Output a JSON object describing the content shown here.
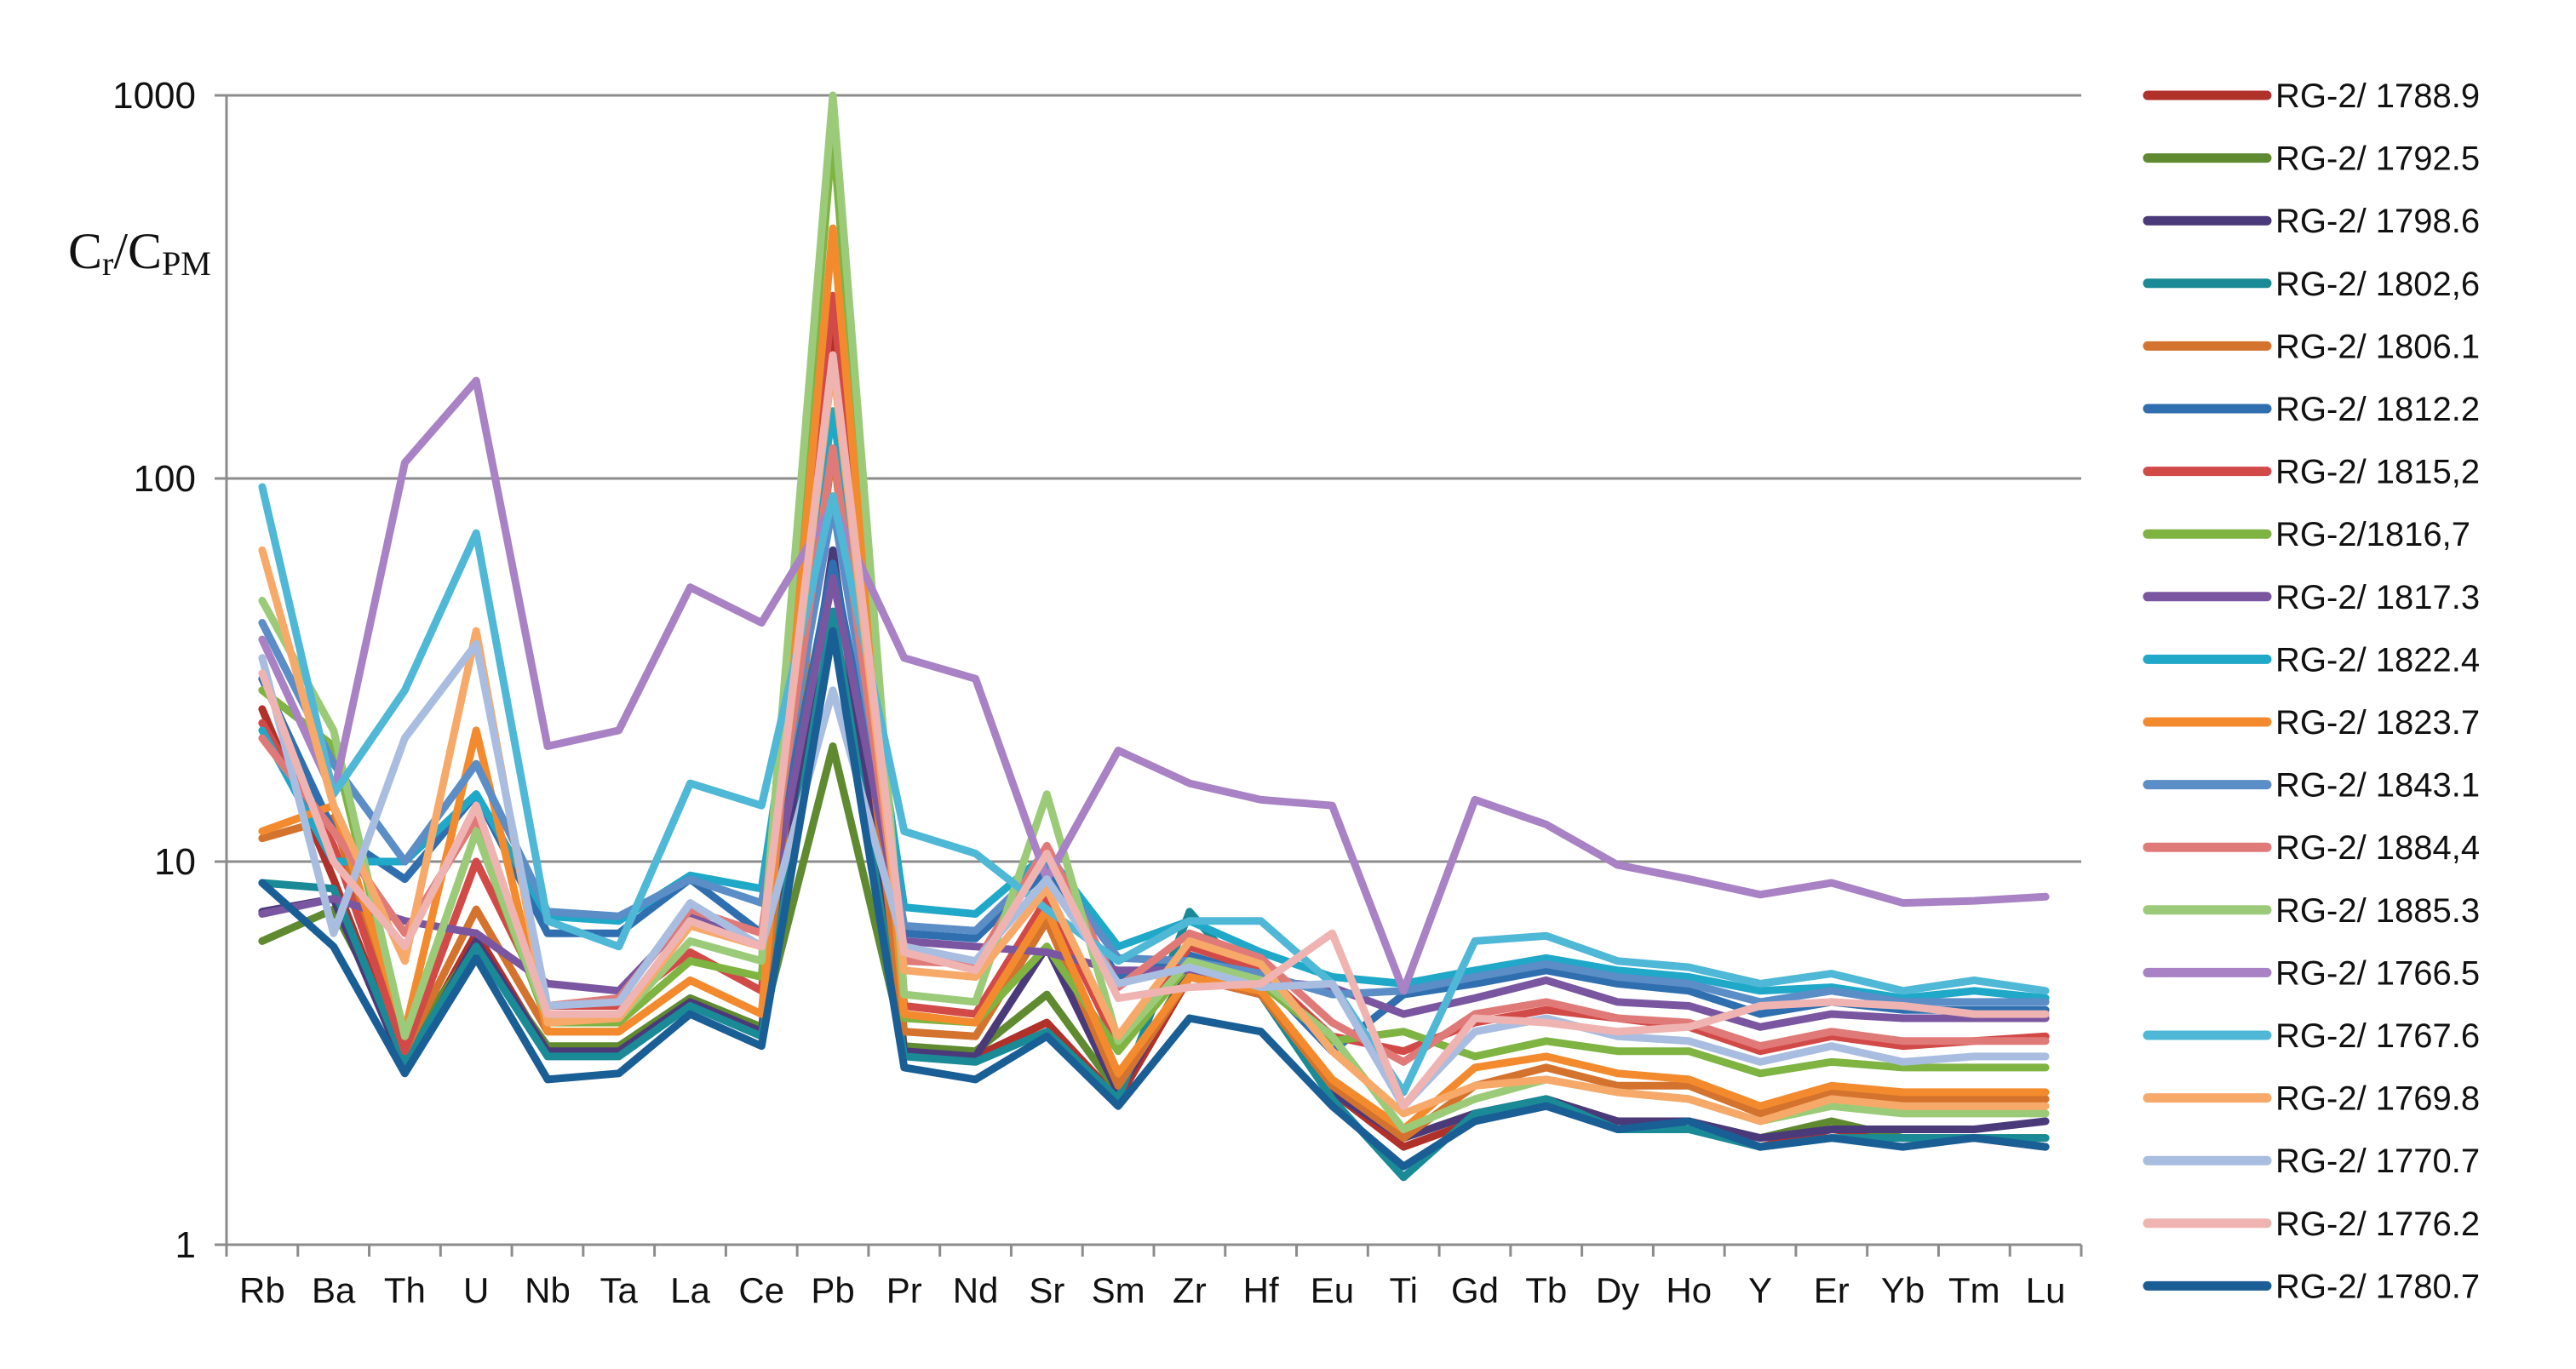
{
  "chart_data": {
    "type": "line",
    "yscale": "log",
    "ylim": [
      1,
      1000
    ],
    "yticks": [
      "1",
      "10",
      "100",
      "1000"
    ],
    "ylabel": {
      "main1": "C",
      "sub1": "r",
      "slash": "/",
      "main2": "C",
      "sub2": "PM"
    },
    "categories": [
      "Rb",
      "Ba",
      "Th",
      "U",
      "Nb",
      "Ta",
      "La",
      "Ce",
      "Pb",
      "Pr",
      "Nd",
      "Sr",
      "Sm",
      "Zr",
      "Hf",
      "Eu",
      "Ti",
      "Gd",
      "Tb",
      "Dy",
      "Ho",
      "Y",
      "Er",
      "Yb",
      "Tm",
      "Lu"
    ],
    "series": [
      {
        "name": "RG-2/ 1788.9",
        "color": "#b0302a",
        "values": [
          25,
          9,
          3.0,
          6.5,
          3.2,
          3.2,
          4.3,
          3.6,
          250,
          3.2,
          3.1,
          3.8,
          2.4,
          5.0,
          4.5,
          2.5,
          1.8,
          2.1,
          2.4,
          2.1,
          2.1,
          1.8,
          2.0,
          1.9,
          1.9,
          1.8
        ]
      },
      {
        "name": "RG-2/ 1792.5",
        "color": "#5f8a30",
        "values": [
          6.2,
          7.5,
          3.3,
          6.0,
          3.3,
          3.3,
          4.4,
          3.7,
          20,
          3.3,
          3.2,
          4.5,
          2.5,
          5.3,
          4.6,
          2.6,
          1.9,
          2.2,
          2.4,
          2.1,
          2.1,
          1.9,
          2.1,
          1.9,
          1.9,
          1.9
        ]
      },
      {
        "name": "RG-2/ 1798.6",
        "color": "#4b3a7a",
        "values": [
          7.4,
          8,
          2.9,
          6.2,
          3.2,
          3.2,
          4.3,
          3.6,
          65,
          3.2,
          3.1,
          6.0,
          2.5,
          5.2,
          4.6,
          2.5,
          1.9,
          2.2,
          2.4,
          2.1,
          2.1,
          1.9,
          2.0,
          2.0,
          2.0,
          2.1
        ]
      },
      {
        "name": "RG-2/ 1802,6",
        "color": "#198a96",
        "values": [
          8.8,
          8.5,
          3.0,
          6.0,
          3.1,
          3.1,
          4.2,
          3.5,
          45,
          3.1,
          3.0,
          3.6,
          2.4,
          7.4,
          4.5,
          2.4,
          1.5,
          2.2,
          2.4,
          2.0,
          2.0,
          1.8,
          1.9,
          1.9,
          1.9,
          1.9
        ]
      },
      {
        "name": "RG-2/ 1806.1",
        "color": "#d4732e",
        "values": [
          11.5,
          13,
          3.2,
          7.5,
          3.6,
          3.6,
          4.9,
          4.0,
          120,
          3.6,
          3.5,
          7.0,
          2.6,
          5.0,
          4.5,
          2.6,
          1.9,
          2.6,
          2.9,
          2.6,
          2.6,
          2.2,
          2.5,
          2.4,
          2.4,
          2.4
        ]
      },
      {
        "name": "RG-2/ 1812.2",
        "color": "#2f6fb0",
        "values": [
          30,
          12,
          9,
          15,
          6.5,
          6.5,
          9.0,
          6.5,
          60,
          6.5,
          6.3,
          9.5,
          5.0,
          5.7,
          5.0,
          3.2,
          4.5,
          4.8,
          5.2,
          4.8,
          4.6,
          4.0,
          4.3,
          4.1,
          4.1,
          4.1
        ]
      },
      {
        "name": "RG-2/ 1815,2",
        "color": "#d24a48",
        "values": [
          23,
          11,
          3.2,
          10,
          4.2,
          4.2,
          5.8,
          4.6,
          300,
          4.2,
          4.0,
          8.0,
          3.3,
          6.0,
          5.2,
          3.5,
          3.2,
          3.8,
          4.1,
          3.9,
          3.7,
          3.2,
          3.5,
          3.3,
          3.4,
          3.5
        ]
      },
      {
        "name": "RG-2/1816,7",
        "color": "#7fb342",
        "values": [
          28,
          20,
          3.5,
          12,
          3.8,
          3.8,
          5.5,
          5.0,
          800,
          3.9,
          3.8,
          6.0,
          3.2,
          5.4,
          4.8,
          3.4,
          3.6,
          3.1,
          3.4,
          3.2,
          3.2,
          2.8,
          3.0,
          2.9,
          2.9,
          2.9
        ]
      },
      {
        "name": "RG-2/ 1817.3",
        "color": "#7a56a0",
        "values": [
          7.3,
          8,
          7.0,
          6.5,
          4.8,
          4.6,
          7.2,
          6.0,
          55,
          6.2,
          6.0,
          5.8,
          5.2,
          5.2,
          4.9,
          4.7,
          4.0,
          4.4,
          4.9,
          4.3,
          4.2,
          3.7,
          4.0,
          3.9,
          3.9,
          3.9
        ]
      },
      {
        "name": "RG-2/ 1822.4",
        "color": "#20a8c8",
        "values": [
          22,
          10,
          10,
          15,
          7.2,
          7.0,
          9.2,
          8.5,
          150,
          7.6,
          7.3,
          10.5,
          6.0,
          7.0,
          5.8,
          5.0,
          4.8,
          5.2,
          5.6,
          5.2,
          5.0,
          4.6,
          4.7,
          4.4,
          4.6,
          4.4
        ]
      },
      {
        "name": "RG-2/ 1823.7",
        "color": "#f38b2e",
        "values": [
          12,
          14,
          3.6,
          22,
          3.6,
          3.6,
          4.9,
          4.0,
          450,
          4.0,
          3.8,
          7.5,
          2.8,
          5.0,
          4.6,
          2.7,
          2.0,
          2.9,
          3.1,
          2.8,
          2.7,
          2.3,
          2.6,
          2.5,
          2.5,
          2.5
        ]
      },
      {
        "name": "RG-2/ 1843.1",
        "color": "#5b8dc6",
        "values": [
          42,
          18,
          10,
          18,
          7.4,
          7.2,
          9.0,
          7.8,
          85,
          6.8,
          6.6,
          10,
          5.6,
          5.5,
          5.1,
          4.5,
          4.6,
          5.0,
          5.4,
          5.0,
          4.8,
          4.3,
          4.6,
          4.3,
          4.3,
          4.3
        ]
      },
      {
        "name": "RG-2/ 1884,4",
        "color": "#e07a78",
        "values": [
          21,
          12,
          6.5,
          13,
          4.2,
          4.4,
          7.5,
          6.5,
          120,
          5.5,
          5.4,
          11,
          4.7,
          6.5,
          5.6,
          3.8,
          3.0,
          4.0,
          4.3,
          3.9,
          3.8,
          3.3,
          3.6,
          3.4,
          3.4,
          3.4
        ]
      },
      {
        "name": "RG-2/ 1885.3",
        "color": "#9bcb78",
        "values": [
          48,
          22,
          3.5,
          12,
          3.9,
          3.9,
          6.2,
          5.5,
          1000,
          4.5,
          4.3,
          15,
          3.4,
          5.5,
          4.9,
          3.5,
          2.0,
          2.4,
          2.7,
          2.5,
          2.4,
          2.1,
          2.3,
          2.2,
          2.2,
          2.2
        ]
      },
      {
        "name": "RG-2/ 1766.5",
        "color": "#a882c4",
        "values": [
          38,
          15,
          110,
          180,
          20,
          22,
          52,
          42,
          85,
          34,
          30,
          9,
          19.5,
          16,
          14.5,
          14,
          4.6,
          14.5,
          12.5,
          9.8,
          9.0,
          8.2,
          8.8,
          7.8,
          7.9,
          8.1
        ]
      },
      {
        "name": "RG-2/ 1767.6",
        "color": "#4fb8d6",
        "values": [
          95,
          15,
          28,
          72,
          7.0,
          6.0,
          16,
          14,
          90,
          12,
          10.5,
          7.5,
          5.5,
          7.0,
          7.0,
          4.8,
          2.5,
          6.2,
          6.4,
          5.5,
          5.3,
          4.8,
          5.1,
          4.6,
          4.9,
          4.6
        ]
      },
      {
        "name": "RG-2/ 1769.8",
        "color": "#f7a96a",
        "values": [
          65,
          14,
          5.5,
          40,
          3.8,
          3.9,
          6.8,
          6.0,
          200,
          5.2,
          5.0,
          8.5,
          3.5,
          6.2,
          5.4,
          3.2,
          2.2,
          2.6,
          2.7,
          2.5,
          2.4,
          2.1,
          2.4,
          2.3,
          2.3,
          2.3
        ]
      },
      {
        "name": "RG-2/ 1770.7",
        "color": "#a9bde0",
        "values": [
          34,
          6.5,
          21,
          37,
          4.2,
          4.3,
          7.8,
          6.0,
          28,
          6.0,
          5.5,
          9.0,
          4.8,
          5.3,
          4.7,
          4.8,
          2.3,
          3.6,
          3.9,
          3.5,
          3.4,
          3.0,
          3.3,
          3.0,
          3.1,
          3.1
        ]
      },
      {
        "name": "RG-2/ 1776.2",
        "color": "#efb4b2",
        "values": [
          31,
          10,
          6.0,
          14,
          4.0,
          4.0,
          7.0,
          6.0,
          210,
          5.8,
          5.2,
          10.5,
          4.4,
          4.7,
          4.8,
          6.5,
          2.3,
          3.9,
          3.8,
          3.6,
          3.7,
          4.2,
          4.3,
          4.2,
          4.0,
          4.0
        ]
      },
      {
        "name": "RG-2/ 1780.7",
        "color": "#1a5e96",
        "values": [
          8.8,
          6,
          2.8,
          5.6,
          2.7,
          2.8,
          4.0,
          3.3,
          40,
          2.9,
          2.7,
          3.5,
          2.3,
          3.9,
          3.6,
          2.3,
          1.6,
          2.1,
          2.3,
          2.0,
          2.1,
          1.8,
          1.9,
          1.8,
          1.9,
          1.8
        ]
      }
    ]
  }
}
